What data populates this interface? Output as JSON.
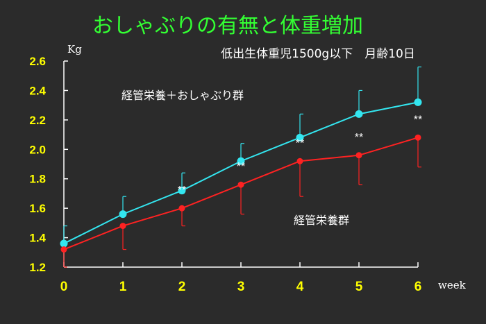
{
  "chart_data": {
    "type": "line",
    "title": "おしゃぶりの有無と体重増加",
    "subtitle": "低出生体重児1500g以下　月齢10日",
    "ylabel": "Kg",
    "xlabel": "week",
    "x": [
      0,
      1,
      2,
      3,
      4,
      5,
      6
    ],
    "x_ticks": [
      "0",
      "1",
      "2",
      "3",
      "4",
      "5",
      "6"
    ],
    "ylim": [
      1.2,
      2.6
    ],
    "y_ticks": [
      "1.2",
      "1.4",
      "1.6",
      "1.8",
      "2.0",
      "2.2",
      "2.4",
      "2.6"
    ],
    "grid": false,
    "series": [
      {
        "name": "経管栄養＋おしゃぶり群",
        "color": "#33e6f0",
        "values": [
          1.36,
          1.56,
          1.72,
          1.92,
          2.08,
          2.24,
          2.32
        ],
        "error_up": [
          0.12,
          0.12,
          0.12,
          0.12,
          0.16,
          0.16,
          0.24
        ]
      },
      {
        "name": "経管栄養群",
        "color": "#ff2222",
        "values": [
          1.32,
          1.48,
          1.6,
          1.76,
          1.92,
          1.96,
          2.08
        ],
        "error_down": [
          0.12,
          0.16,
          0.12,
          0.2,
          0.24,
          0.2,
          0.2
        ]
      }
    ],
    "annotations": [
      {
        "x": 2,
        "text": "**"
      },
      {
        "x": 3,
        "text": "**"
      },
      {
        "x": 4,
        "text": "**"
      },
      {
        "x": 5,
        "text": "**"
      },
      {
        "x": 6,
        "text": "**"
      }
    ]
  }
}
